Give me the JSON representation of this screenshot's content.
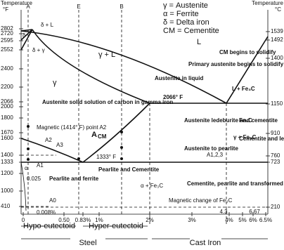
{
  "legend": [
    "γ = Austenite",
    "α = Ferrite",
    "δ = Delta iron",
    "CM = Cementite"
  ],
  "axes": {
    "left_title": "Temperature",
    "left_unit": "°F",
    "right_title": "Temperature",
    "right_unit": "°C",
    "left_ticks": [
      "2802",
      "2720",
      "2595",
      "2552",
      "2400",
      "2200",
      "2066",
      "2000",
      "1800",
      "1670",
      "1600",
      "1400",
      "1333",
      "1200",
      "1000",
      "410"
    ],
    "right_ticks": [
      "1539",
      "1492",
      "1400",
      "1150",
      "910",
      "760",
      "723",
      "210"
    ],
    "bottom_ticks": [
      "0",
      "0.50",
      "0.83%",
      "1%",
      "2%",
      "3%",
      "4%",
      "5%",
      "6%",
      "6.5%"
    ],
    "bottom_marks": [
      "4.3",
      "6.67"
    ],
    "top_lines": [
      "A",
      "E",
      "B"
    ]
  },
  "ranges": [
    "Hypo-eutectoid",
    "Hyper-eutectoid",
    "Steel",
    "Cast Iron"
  ],
  "regions": [
    "L",
    "γ + L",
    "γ",
    "δ + L",
    "δ + γ",
    "δ",
    "Austenite in liquid",
    "Primary austenite begins to solidify",
    "CM begins to solidify",
    "L + Fe₃C",
    "Austenite solid solution of carbon in gamma iron",
    "2066° F",
    "Austenite ledeburite and cementite",
    "Fe₃C",
    "γ + Fe₃C",
    "Cementite and ledeburite",
    "Austenite to pearlite",
    "A1,2,3",
    "Magnetic (1414° F) point A2",
    "A2",
    "A3",
    "A",
    "CM",
    "1333° F",
    "A1",
    "α",
    "0.025",
    "Pearlite and ferrite",
    "Pearlite and Cementite",
    "Cementite, pearlite and transformed ledeburite",
    "α + Fe₃C",
    "A0",
    "0.008%",
    "Magnetic change of Fe₃C"
  ]
}
